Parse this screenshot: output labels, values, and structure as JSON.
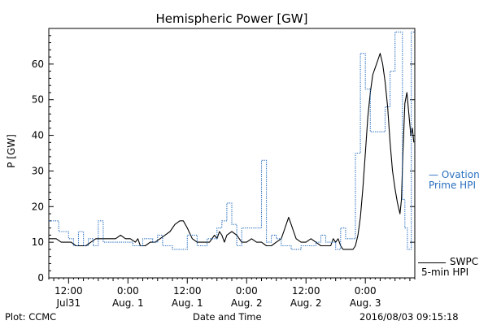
{
  "chart_data": {
    "type": "line",
    "title": "Hemispheric Power [GW]",
    "ylabel": "P [GW]",
    "xlabel": "Date and Time",
    "ylim": [
      0,
      70
    ],
    "yticks": [
      0,
      10,
      20,
      30,
      40,
      50,
      60
    ],
    "x_unit": "hours after 2016-07-31 00:00",
    "xlim": [
      8,
      82
    ],
    "x_ticks": [
      {
        "x": 12,
        "line1": "12:00",
        "line2": "Jul31"
      },
      {
        "x": 24,
        "line1": "0:00",
        "line2": "Aug. 1"
      },
      {
        "x": 36,
        "line1": "12:00",
        "line2": "Aug. 1"
      },
      {
        "x": 48,
        "line1": "0:00",
        "line2": "Aug. 2"
      },
      {
        "x": 60,
        "line1": "12:00",
        "line2": "Aug. 2"
      },
      {
        "x": 72,
        "line1": "0:00",
        "line2": "Aug. 3"
      }
    ],
    "series": [
      {
        "name": "SWPC 5-min HPI",
        "label_lines": [
          "SWPC",
          "5-min HPI"
        ],
        "color": "#000000",
        "style": "solid",
        "points": [
          [
            8.0,
            11
          ],
          [
            9.5,
            11
          ],
          [
            10.5,
            10
          ],
          [
            12.5,
            10
          ],
          [
            13.5,
            9
          ],
          [
            15.5,
            9
          ],
          [
            16.5,
            10
          ],
          [
            17.5,
            11
          ],
          [
            19.5,
            11
          ],
          [
            21.5,
            11
          ],
          [
            22.5,
            12
          ],
          [
            23.5,
            11
          ],
          [
            24.5,
            11
          ],
          [
            25.5,
            10
          ],
          [
            26,
            11
          ],
          [
            26.5,
            9
          ],
          [
            27.5,
            9
          ],
          [
            28.5,
            10
          ],
          [
            29.5,
            10
          ],
          [
            30.5,
            11
          ],
          [
            31.5,
            12
          ],
          [
            32.5,
            13
          ],
          [
            33.5,
            15
          ],
          [
            34.5,
            16
          ],
          [
            35.2,
            16
          ],
          [
            36,
            14
          ],
          [
            37,
            11
          ],
          [
            38,
            10
          ],
          [
            39,
            10
          ],
          [
            40.5,
            10
          ],
          [
            41.5,
            12
          ],
          [
            42,
            11
          ],
          [
            42.5,
            13
          ],
          [
            43,
            12
          ],
          [
            43.5,
            10
          ],
          [
            44,
            12
          ],
          [
            45,
            13
          ],
          [
            46,
            12
          ],
          [
            47,
            10
          ],
          [
            48,
            10
          ],
          [
            49,
            11
          ],
          [
            50,
            10
          ],
          [
            51,
            10
          ],
          [
            52,
            9
          ],
          [
            53,
            9
          ],
          [
            54,
            10
          ],
          [
            55,
            11
          ],
          [
            55.5,
            13
          ],
          [
            56,
            15
          ],
          [
            56.5,
            17
          ],
          [
            57,
            15
          ],
          [
            57.5,
            13
          ],
          [
            58,
            11
          ],
          [
            59,
            10
          ],
          [
            60,
            10
          ],
          [
            61,
            11
          ],
          [
            62,
            10
          ],
          [
            63,
            9
          ],
          [
            64,
            9
          ],
          [
            65,
            9
          ],
          [
            65.5,
            11
          ],
          [
            66,
            10
          ],
          [
            66.5,
            11
          ],
          [
            67,
            9
          ],
          [
            67.5,
            8
          ],
          [
            68.5,
            8
          ],
          [
            69,
            8
          ],
          [
            69.5,
            8
          ],
          [
            70,
            9
          ],
          [
            70.5,
            12
          ],
          [
            71,
            17
          ],
          [
            71.5,
            25
          ],
          [
            72,
            35
          ],
          [
            72.5,
            45
          ],
          [
            73,
            52
          ],
          [
            73.5,
            57
          ],
          [
            74,
            59
          ],
          [
            74.5,
            61
          ],
          [
            75,
            63
          ],
          [
            75.5,
            60
          ],
          [
            76,
            55
          ],
          [
            76.5,
            48
          ],
          [
            77,
            38
          ],
          [
            77.5,
            30
          ],
          [
            78,
            25
          ],
          [
            78.5,
            21
          ],
          [
            79,
            18
          ],
          [
            79.3,
            22
          ],
          [
            79.6,
            35
          ],
          [
            80,
            49
          ],
          [
            80.4,
            52
          ],
          [
            80.8,
            46
          ],
          [
            81.2,
            40
          ],
          [
            81.5,
            42
          ],
          [
            81.8,
            38
          ]
        ]
      },
      {
        "name": "Ovation Prime HPI",
        "label_lines": [
          "— Ovation",
          "Prime HPI"
        ],
        "color": "#2a6fbf",
        "style": "dotted",
        "points": [
          [
            8.0,
            16
          ],
          [
            10,
            16
          ],
          [
            10,
            13
          ],
          [
            12,
            13
          ],
          [
            12,
            11
          ],
          [
            13,
            11
          ],
          [
            13,
            9
          ],
          [
            14,
            9
          ],
          [
            14,
            13
          ],
          [
            15,
            13
          ],
          [
            15,
            9
          ],
          [
            16,
            9
          ],
          [
            16,
            11
          ],
          [
            17,
            11
          ],
          [
            17,
            9
          ],
          [
            18,
            9
          ],
          [
            18,
            16
          ],
          [
            19,
            16
          ],
          [
            19,
            10
          ],
          [
            25,
            10
          ],
          [
            25,
            9
          ],
          [
            27,
            9
          ],
          [
            27,
            11
          ],
          [
            29,
            11
          ],
          [
            29,
            10
          ],
          [
            30,
            10
          ],
          [
            30,
            12
          ],
          [
            31,
            12
          ],
          [
            31,
            9
          ],
          [
            33,
            9
          ],
          [
            33,
            8
          ],
          [
            36,
            8
          ],
          [
            36,
            12
          ],
          [
            38,
            12
          ],
          [
            38,
            9
          ],
          [
            40,
            9
          ],
          [
            40,
            11
          ],
          [
            42,
            11
          ],
          [
            42,
            14
          ],
          [
            43,
            14
          ],
          [
            43,
            16
          ],
          [
            44,
            16
          ],
          [
            44,
            21
          ],
          [
            45,
            21
          ],
          [
            45,
            15
          ],
          [
            46,
            15
          ],
          [
            46,
            9
          ],
          [
            47,
            9
          ],
          [
            47,
            14
          ],
          [
            51,
            14
          ],
          [
            51,
            33
          ],
          [
            52,
            33
          ],
          [
            52,
            10
          ],
          [
            53,
            10
          ],
          [
            53,
            12
          ],
          [
            54,
            12
          ],
          [
            54,
            11
          ],
          [
            55,
            11
          ],
          [
            55,
            9
          ],
          [
            57,
            9
          ],
          [
            57,
            8
          ],
          [
            59,
            8
          ],
          [
            59,
            9
          ],
          [
            62,
            9
          ],
          [
            62,
            10
          ],
          [
            63,
            10
          ],
          [
            63,
            12
          ],
          [
            64,
            12
          ],
          [
            64,
            10
          ],
          [
            66,
            10
          ],
          [
            66,
            8
          ],
          [
            67,
            8
          ],
          [
            67,
            14
          ],
          [
            68,
            14
          ],
          [
            68,
            11
          ],
          [
            70,
            11
          ],
          [
            70,
            35
          ],
          [
            71,
            35
          ],
          [
            71,
            63
          ],
          [
            72,
            63
          ],
          [
            72,
            53
          ],
          [
            73,
            53
          ],
          [
            73,
            41
          ],
          [
            76,
            41
          ],
          [
            76,
            48
          ],
          [
            77,
            48
          ],
          [
            77,
            58
          ],
          [
            78,
            58
          ],
          [
            78,
            69
          ],
          [
            79.5,
            69
          ],
          [
            79.5,
            22
          ],
          [
            80,
            22
          ],
          [
            80,
            14
          ],
          [
            80.5,
            14
          ],
          [
            80.5,
            8
          ],
          [
            81.3,
            8
          ],
          [
            81.3,
            69
          ],
          [
            82,
            69
          ]
        ]
      }
    ],
    "footer_left": "Plot: CCMC",
    "footer_center": "Date and Time",
    "footer_right": "2016/08/03 09:15:18"
  }
}
